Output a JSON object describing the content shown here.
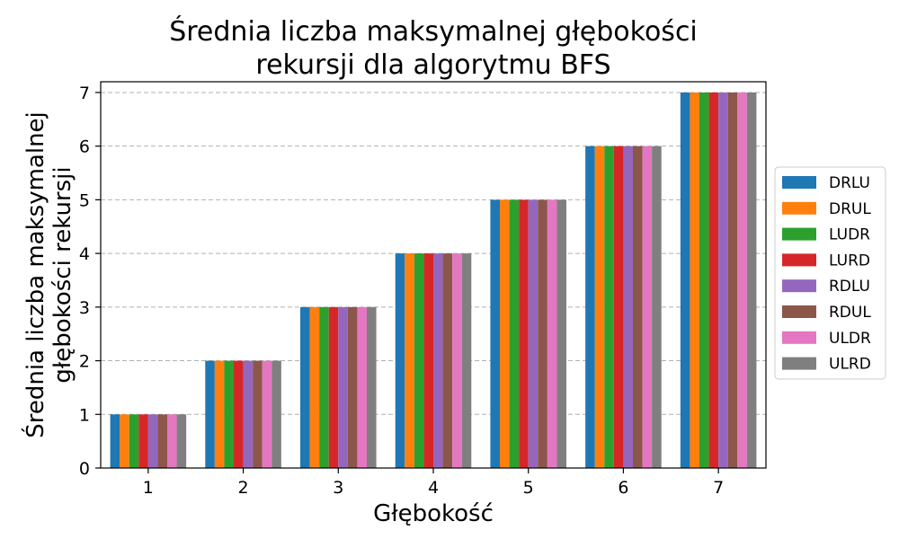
{
  "chart_data": {
    "type": "bar",
    "title_line1": "Średnia liczba maksymalnej głębokości",
    "title_line2": "rekursji dla algorytmu BFS",
    "xlabel": "Głębokość",
    "ylabel_line1": "Średnia liczba maksymalnej",
    "ylabel_line2": "głębokości rekursji",
    "categories": [
      "1",
      "2",
      "3",
      "4",
      "5",
      "6",
      "7"
    ],
    "ylim": [
      0,
      7.2
    ],
    "yticks": [
      0,
      1,
      2,
      3,
      4,
      5,
      6,
      7
    ],
    "grid": "y-dashed",
    "legend_position": "center-right-outside",
    "series": [
      {
        "name": "DRLU",
        "color": "#1f77b4",
        "values": [
          1,
          2,
          3,
          4,
          5,
          6,
          7
        ]
      },
      {
        "name": "DRUL",
        "color": "#ff7f0e",
        "values": [
          1,
          2,
          3,
          4,
          5,
          6,
          7
        ]
      },
      {
        "name": "LUDR",
        "color": "#2ca02c",
        "values": [
          1,
          2,
          3,
          4,
          5,
          6,
          7
        ]
      },
      {
        "name": "LURD",
        "color": "#d62728",
        "values": [
          1,
          2,
          3,
          4,
          5,
          6,
          7
        ]
      },
      {
        "name": "RDLU",
        "color": "#9467bd",
        "values": [
          1,
          2,
          3,
          4,
          5,
          6,
          7
        ]
      },
      {
        "name": "RDUL",
        "color": "#8c564b",
        "values": [
          1,
          2,
          3,
          4,
          5,
          6,
          7
        ]
      },
      {
        "name": "ULDR",
        "color": "#e377c2",
        "values": [
          1,
          2,
          3,
          4,
          5,
          6,
          7
        ]
      },
      {
        "name": "ULRD",
        "color": "#7f7f7f",
        "values": [
          1,
          2,
          3,
          4,
          5,
          6,
          7
        ]
      }
    ]
  }
}
